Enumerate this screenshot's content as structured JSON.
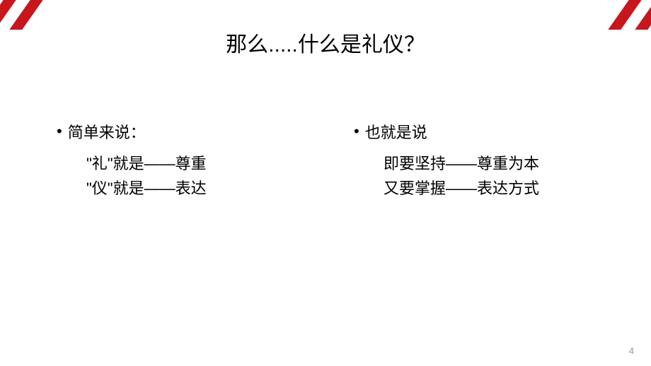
{
  "title": "那么.....什么是礼仪？",
  "leftColumn": {
    "header": "简单来说：",
    "line1": "\"礼\"就是——尊重",
    "line2": "\"仪\"就是——表达"
  },
  "rightColumn": {
    "header": "也就是说",
    "line1": "即要坚持——尊重为本",
    "line2": "又要掌握——表达方式"
  },
  "pageNumber": "4",
  "accentColor": "#c8161d",
  "backgroundColor": "#ffffff",
  "textColor": "#000000",
  "titleFontSize": 30,
  "bodyFontSize": 22
}
